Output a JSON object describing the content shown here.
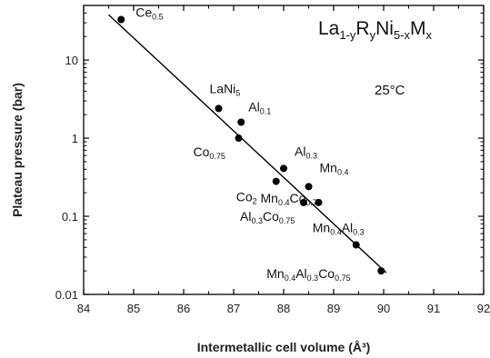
{
  "chart_data": {
    "type": "scatter",
    "title": "",
    "xlabel": "Intermetallic cell volume (Å³)",
    "ylabel": "Plateau pressure (bar)",
    "xlim": [
      84,
      92
    ],
    "ylim": [
      0.01,
      50
    ],
    "yscale": "log",
    "grid": false,
    "x_ticks": [
      "84",
      "85",
      "86",
      "87",
      "88",
      "89",
      "90",
      "91",
      "92"
    ],
    "y_ticks": [
      "0.01",
      "0.1",
      "1",
      "10"
    ],
    "annotations": {
      "formula": {
        "parts": [
          "La",
          "1-y",
          "R",
          "y",
          "Ni",
          "5-x",
          "M",
          "x"
        ]
      },
      "temperature": "25°C"
    },
    "points": [
      {
        "x": 84.75,
        "y": 33.0,
        "label": [
          [
            "Ce",
            false
          ],
          [
            "0.5",
            true
          ]
        ]
      },
      {
        "x": 86.7,
        "y": 2.4,
        "label": [
          [
            "LaNi",
            false
          ],
          [
            "5",
            true
          ]
        ]
      },
      {
        "x": 87.15,
        "y": 1.6,
        "label": [
          [
            "Al",
            false
          ],
          [
            "0.1",
            true
          ]
        ]
      },
      {
        "x": 87.1,
        "y": 1.0,
        "label": [
          [
            "Co",
            false
          ],
          [
            "0.75",
            true
          ]
        ]
      },
      {
        "x": 88.0,
        "y": 0.41,
        "label": [
          [
            "Al",
            false
          ],
          [
            "0.3",
            true
          ]
        ]
      },
      {
        "x": 87.85,
        "y": 0.28,
        "label": [
          [
            "Co",
            false
          ],
          [
            "2",
            true
          ]
        ]
      },
      {
        "x": 88.5,
        "y": 0.24,
        "label": [
          [
            "Mn",
            false
          ],
          [
            "0.4",
            true
          ]
        ]
      },
      {
        "x": 88.4,
        "y": 0.15,
        "label": [
          [
            "Al",
            false
          ],
          [
            "0.3",
            true
          ],
          [
            "Co",
            false
          ],
          [
            "0.75",
            true
          ]
        ]
      },
      {
        "x": 88.7,
        "y": 0.15,
        "label": [
          [
            "Mn",
            false
          ],
          [
            "0.4",
            true
          ],
          [
            "Co",
            false
          ],
          [
            "0.75",
            true
          ]
        ]
      },
      {
        "x": 89.45,
        "y": 0.043,
        "label": [
          [
            "Mn",
            false
          ],
          [
            "0.4",
            true
          ],
          [
            "Al",
            false
          ],
          [
            "0.3",
            true
          ]
        ]
      },
      {
        "x": 89.95,
        "y": 0.02,
        "label": [
          [
            "Mn",
            false
          ],
          [
            "0.4",
            true
          ],
          [
            "Al",
            false
          ],
          [
            "0.3",
            true
          ],
          [
            "Co",
            false
          ],
          [
            "0.75",
            true
          ]
        ]
      }
    ],
    "fit_line": {
      "x": [
        84.5,
        90.05
      ],
      "y": [
        38.0,
        0.019
      ]
    }
  }
}
